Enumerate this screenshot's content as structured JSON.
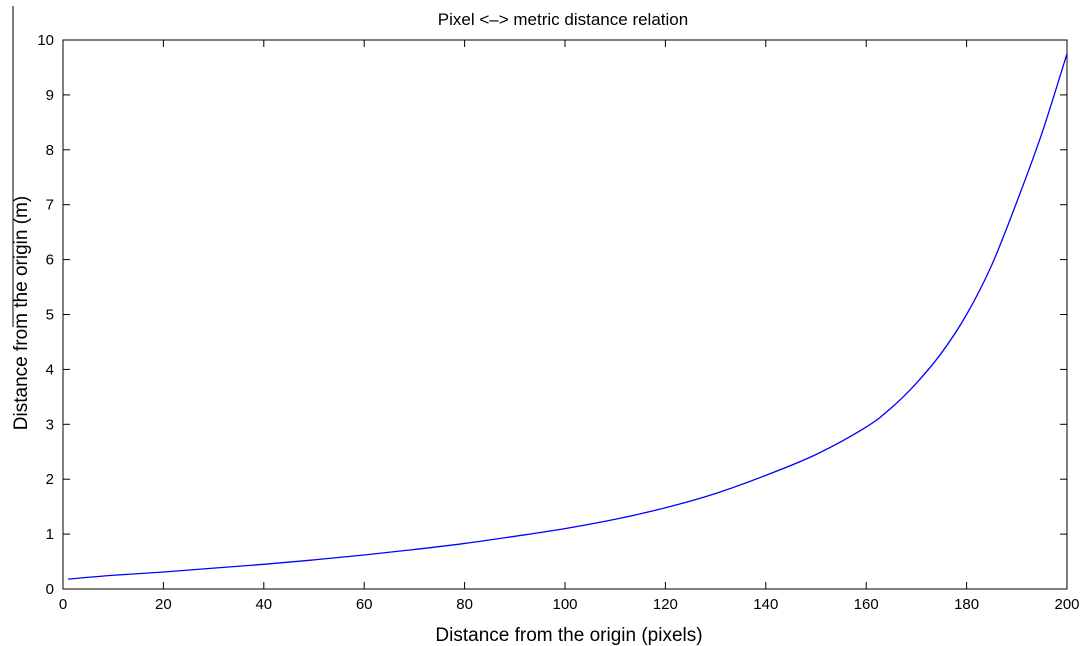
{
  "chart_data": {
    "type": "line",
    "title": "Pixel <–> metric distance relation",
    "xlabel": "Distance from the origin (pixels)",
    "ylabel": "Distance from the origin (m)",
    "xlim": [
      0,
      200
    ],
    "ylim": [
      0,
      10
    ],
    "xticks": [
      "0",
      "20",
      "40",
      "60",
      "80",
      "100",
      "120",
      "140",
      "160",
      "180",
      "200"
    ],
    "yticks": [
      "0",
      "1",
      "2",
      "3",
      "4",
      "5",
      "6",
      "7",
      "8",
      "9",
      "10"
    ],
    "grid": false,
    "line_color": "#0000ff",
    "series": [
      {
        "x": [
          1,
          10,
          20,
          30,
          40,
          50,
          60,
          70,
          80,
          90,
          100,
          110,
          120,
          130,
          140,
          150,
          160,
          165,
          170,
          175,
          180,
          185,
          190,
          195,
          200
        ],
        "y": [
          0.18,
          0.25,
          0.31,
          0.38,
          0.45,
          0.53,
          0.62,
          0.72,
          0.83,
          0.96,
          1.1,
          1.27,
          1.48,
          1.74,
          2.07,
          2.45,
          2.95,
          3.3,
          3.75,
          4.3,
          5.0,
          5.9,
          7.05,
          8.3,
          9.75
        ]
      }
    ]
  }
}
